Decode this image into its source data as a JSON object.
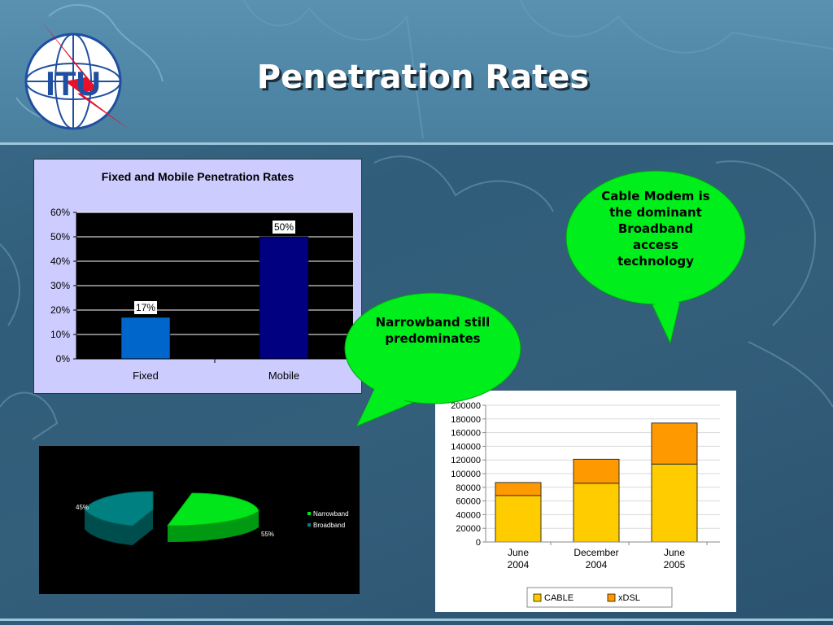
{
  "slide": {
    "title": "Penetration Rates",
    "logo_text": "ITU"
  },
  "bubbles": {
    "narrowband": "Narrowband still predominates",
    "cable": "Cable Modem is the dominant Broadband access technology"
  },
  "colors": {
    "bubble_fill": "#00ee1c",
    "fixed_bar": "#0066cc",
    "mobile_bar": "#000080",
    "narrowband_slice": "#00e61a",
    "broadband_slice": "#008080",
    "cable": "#ffcc00",
    "xdsl": "#ff9900"
  },
  "chart_data": [
    {
      "type": "bar",
      "title": "Fixed and Mobile Penetration Rates",
      "categories": [
        "Fixed",
        "Mobile"
      ],
      "values": [
        17,
        50
      ],
      "data_labels": [
        "17%",
        "50%"
      ],
      "ylim": [
        0,
        60
      ],
      "yticks": [
        "0%",
        "10%",
        "20%",
        "30%",
        "40%",
        "50%",
        "60%"
      ],
      "grid": true
    },
    {
      "type": "pie",
      "labels": [
        "Narrowband",
        "Broadband"
      ],
      "values": [
        55,
        45
      ],
      "data_labels": [
        "55%",
        "45%"
      ],
      "legend": "right"
    },
    {
      "type": "bar",
      "stacked": true,
      "categories": [
        "June\n2004",
        "December\n2004",
        "June\n2005"
      ],
      "series": [
        {
          "name": "CABLE",
          "values": [
            68000,
            86000,
            114000
          ]
        },
        {
          "name": "xDSL",
          "values": [
            19000,
            35000,
            60000
          ]
        }
      ],
      "ylim": [
        0,
        200000
      ],
      "yticks": [
        "0",
        "20000",
        "40000",
        "60000",
        "80000",
        "100000",
        "120000",
        "140000",
        "160000",
        "180000",
        "200000"
      ],
      "legend": "bottom",
      "grid": true
    }
  ]
}
